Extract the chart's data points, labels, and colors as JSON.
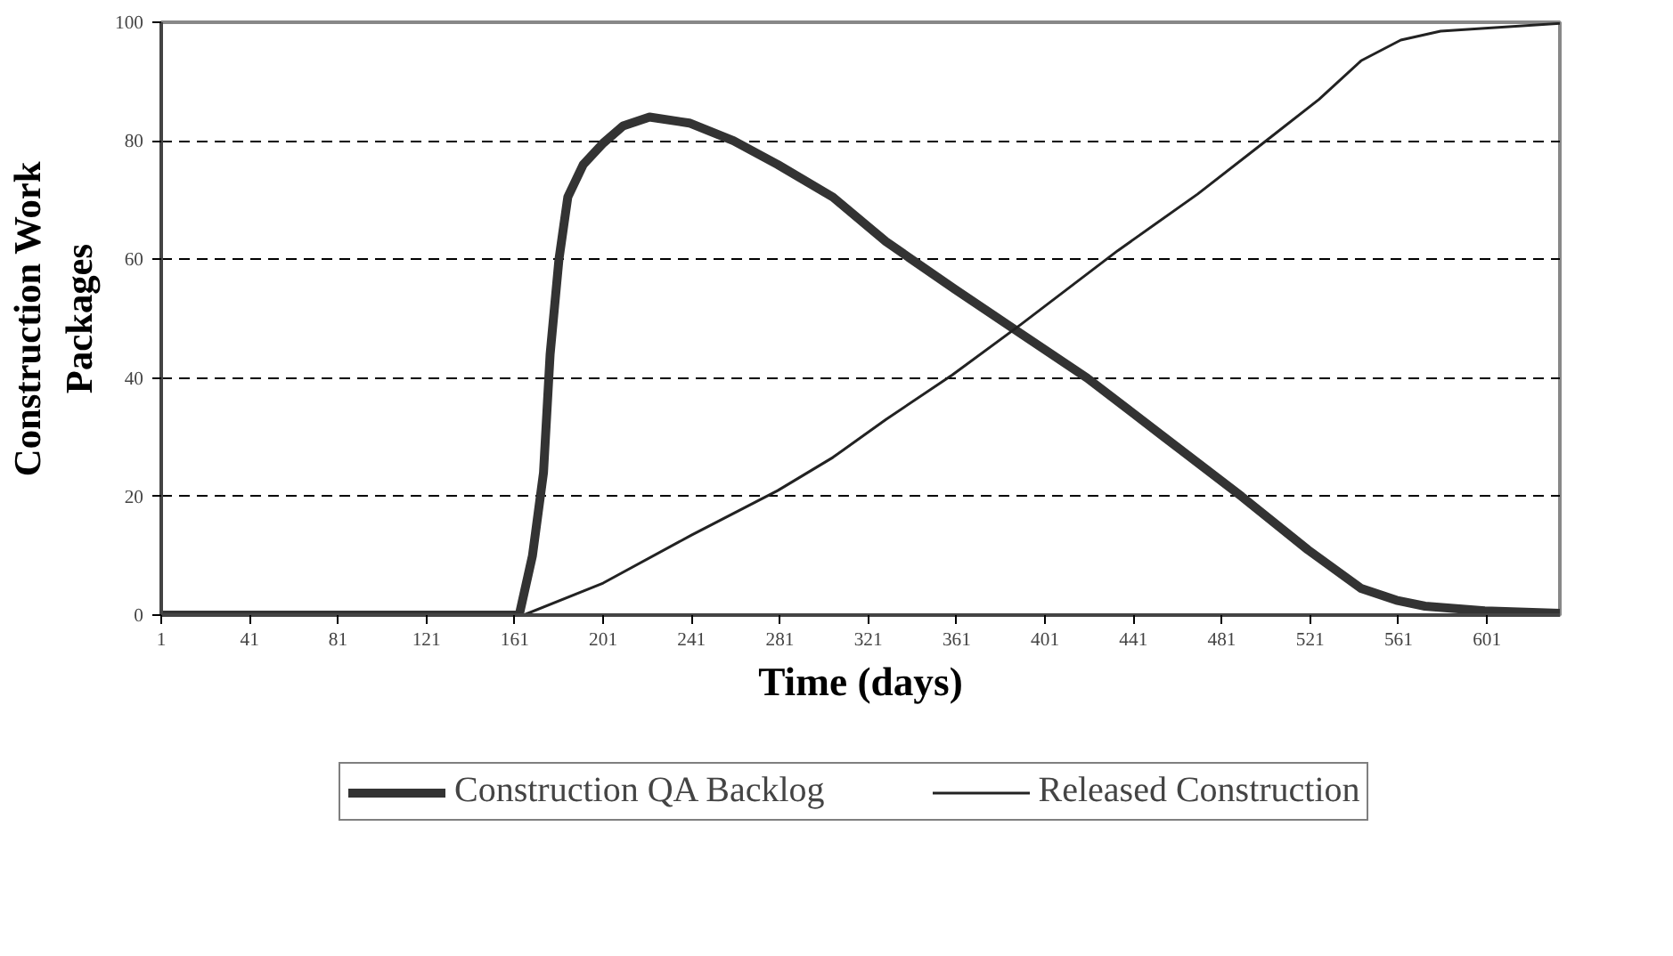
{
  "chart_data": {
    "type": "line",
    "xlabel": "Time (days)",
    "ylabel": "Construction Work Packages",
    "xlim": [
      1,
      634
    ],
    "ylim": [
      0,
      100
    ],
    "xticks": [
      1,
      41,
      81,
      121,
      161,
      201,
      241,
      281,
      321,
      361,
      401,
      441,
      481,
      521,
      561,
      601
    ],
    "yticks": [
      0,
      20,
      40,
      60,
      80,
      100
    ],
    "grid": "y",
    "legend": "bottom",
    "series": [
      {
        "name": "Construction QA Backlog",
        "color": "#333333",
        "x": [
          1,
          163,
          169,
          174,
          177,
          181,
          185,
          192,
          201,
          210,
          222,
          240,
          260,
          280,
          305,
          329,
          360,
          388,
          420,
          455,
          490,
          520,
          544,
          560,
          573,
          600,
          634
        ],
        "values": [
          0,
          0,
          10,
          24,
          44,
          60,
          70.5,
          76,
          79.6,
          82.5,
          84,
          83,
          80,
          76,
          70.5,
          63,
          55,
          48,
          40,
          30,
          20,
          11,
          4.5,
          2.5,
          1.5,
          0.7,
          0.3
        ]
      },
      {
        "name": "Released Construction",
        "color": "#222222",
        "x": [
          1,
          165,
          201,
          241,
          280,
          305,
          329,
          359,
          390,
          434,
          470,
          501,
          525,
          544,
          562,
          580,
          600,
          634
        ],
        "values": [
          0,
          0,
          5.4,
          13.5,
          21,
          26.6,
          33,
          40.5,
          49,
          61.5,
          71,
          80,
          87,
          93.5,
          97,
          98.5,
          99,
          99.8
        ]
      }
    ]
  }
}
